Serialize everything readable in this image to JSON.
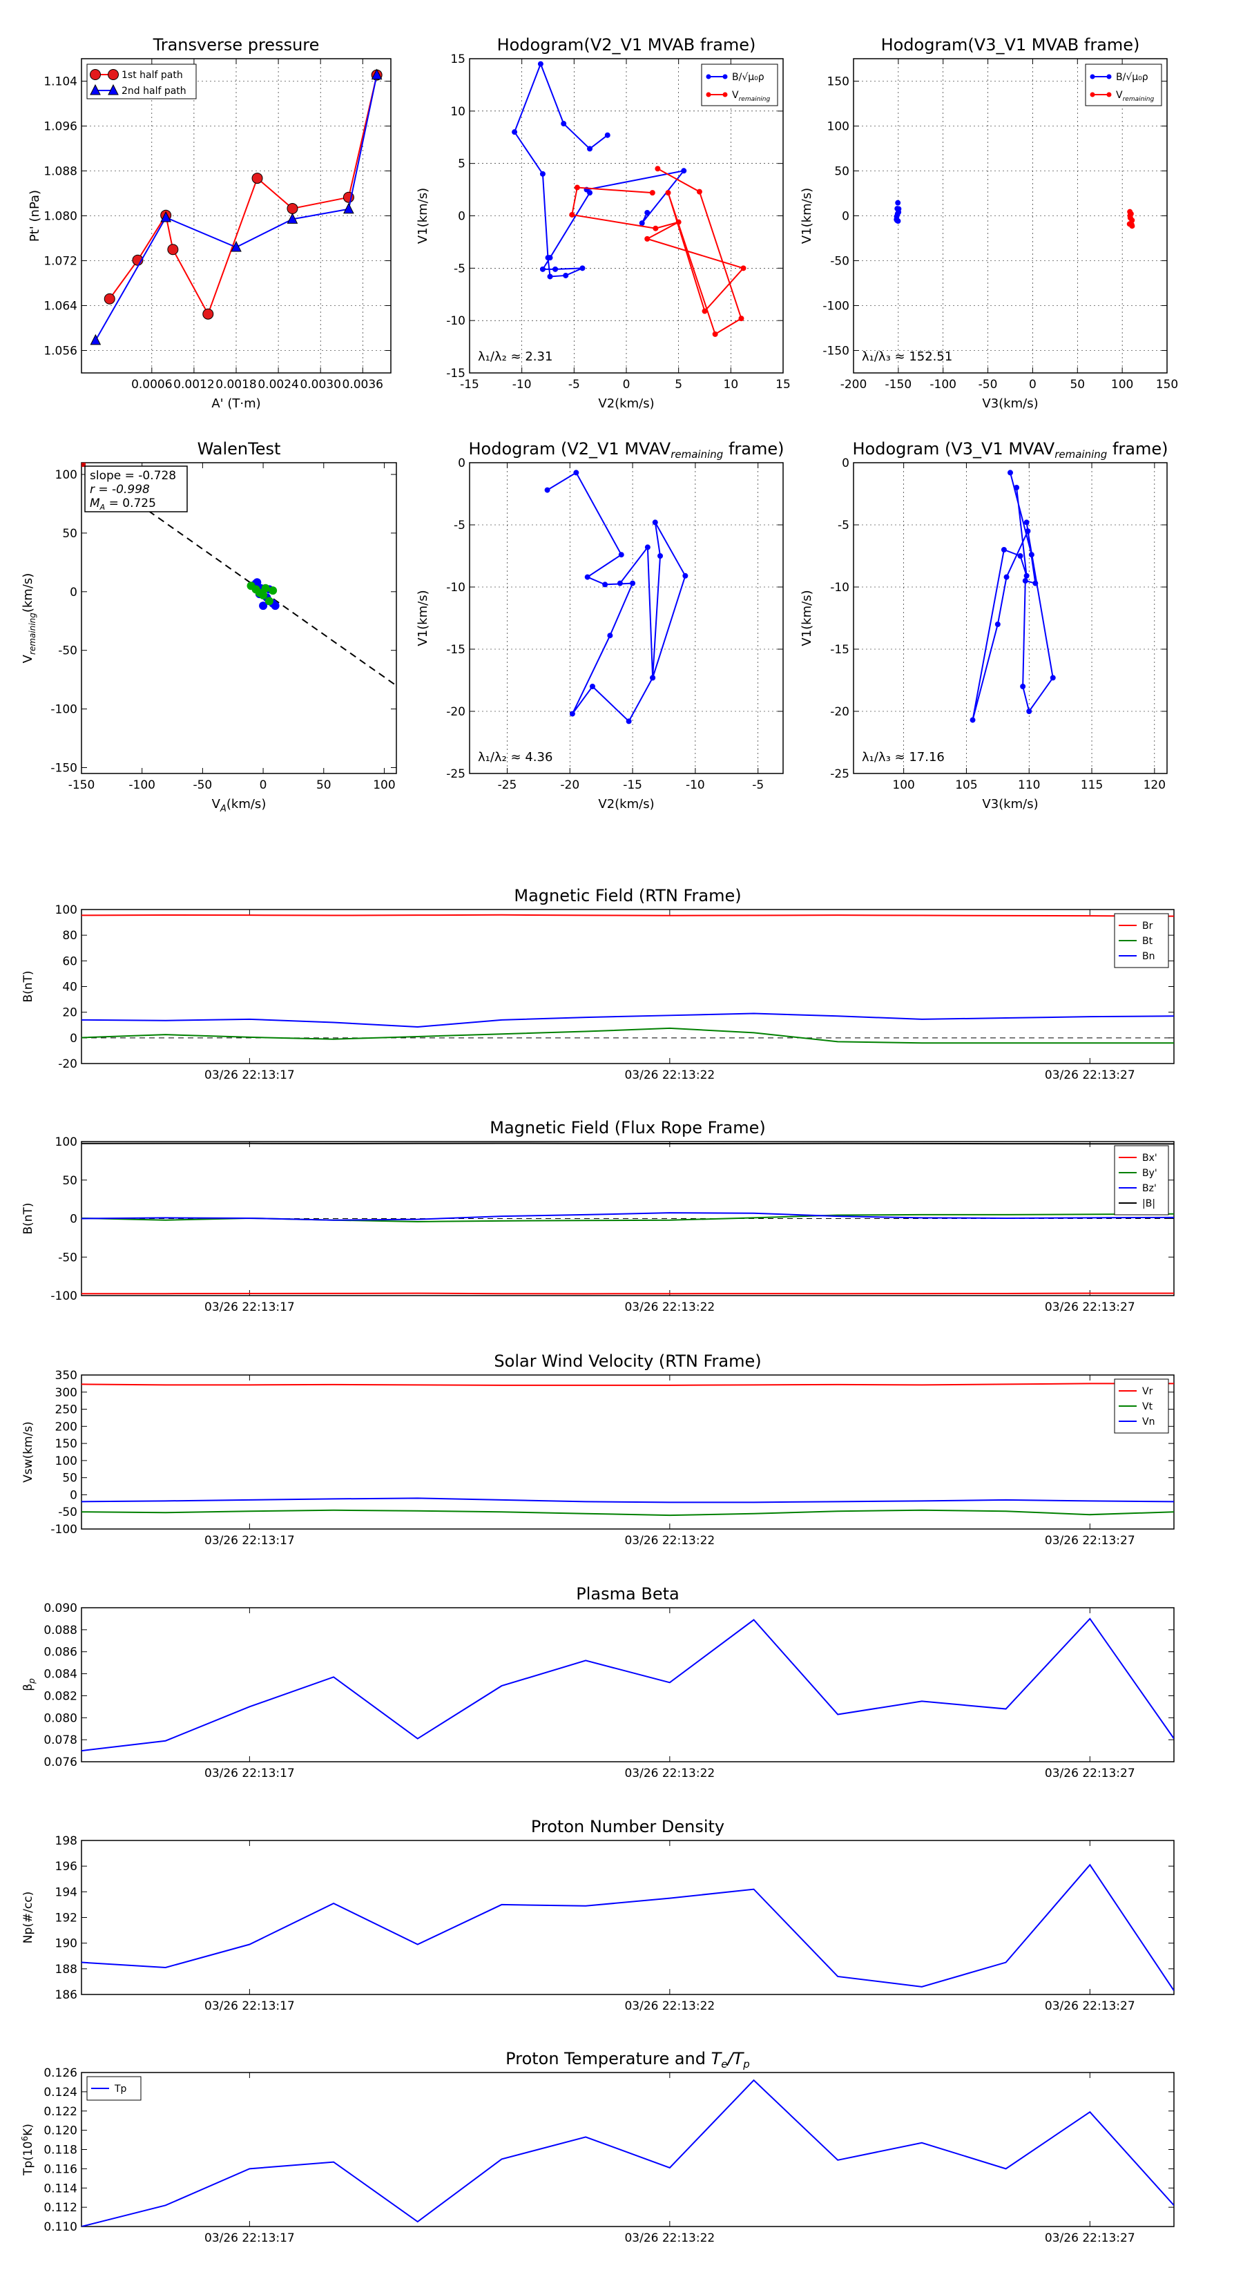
{
  "figure": {
    "walen_box": {
      "slope": "slope = -0.728",
      "r": "r = -0.998",
      "ma": "M",
      "ma_sub": "A",
      "ma_val": " = 0.725"
    }
  },
  "chart_data": [
    {
      "id": "pt",
      "type": "line",
      "title": "Transverse pressure",
      "xlabel": "A' (T·m)",
      "ylabel": "Pt' (nPa)",
      "xlim": [
        -0.0004,
        0.004
      ],
      "ylim": [
        1.052,
        1.108
      ],
      "xticks": [
        0.0006,
        0.0012,
        0.0018,
        0.0024,
        0.003,
        0.0036
      ],
      "xtick_labels": [
        "0.0006",
        "0.0012",
        "0.0018",
        "0.0024",
        "0.0030",
        "0.0036"
      ],
      "yticks": [
        1.056,
        1.064,
        1.072,
        1.08,
        1.088,
        1.096,
        1.104
      ],
      "ytick_labels": [
        "1.056",
        "1.064",
        "1.072",
        "1.080",
        "1.088",
        "1.096",
        "1.104"
      ],
      "grid": true,
      "legend": "top-left",
      "series": [
        {
          "name": "1st half path",
          "color": "#ff0000",
          "marker": "circle",
          "x": [
            0.0038,
            0.0034,
            0.0026,
            0.0021,
            0.0014,
            0.0009,
            0.0008,
            0.0004,
            0.0
          ],
          "y": [
            1.1051,
            1.0833,
            1.0813,
            1.0867,
            1.0625,
            1.074,
            1.0801,
            1.0721,
            1.0652
          ]
        },
        {
          "name": "2nd half path",
          "color": "#0000ff",
          "marker": "triangle",
          "x": [
            -0.0002,
            0.0008,
            0.0018,
            0.0026,
            0.0034,
            0.0038
          ],
          "y": [
            1.0578,
            1.0797,
            1.0744,
            1.0794,
            1.0812,
            1.1051
          ]
        }
      ]
    },
    {
      "id": "h1",
      "type": "line",
      "title": "Hodogram(V2_V1 MVAB frame)",
      "xlabel": "V2(km/s)",
      "ylabel": "V1(km/s)",
      "xlim": [
        -15,
        15
      ],
      "ylim": [
        -15,
        15
      ],
      "xticks": [
        -15,
        -10,
        -5,
        0,
        5,
        10,
        15
      ],
      "yticks": [
        -15,
        -10,
        -5,
        0,
        5,
        10,
        15
      ],
      "grid": true,
      "legend": "top-right",
      "legend_labels": [
        "B/√μ₀ρ",
        "V"
      ],
      "legend_subs": [
        "",
        "remaining"
      ],
      "annotation_main": "λ₁/λ₂ ≈ 2.31",
      "series": [
        {
          "name": "B",
          "color": "#0000ff",
          "x": [
            -1.8,
            -3.5,
            -6,
            -8.2,
            -10.7,
            -8.0,
            -7.5,
            -7.3,
            -5.8,
            -4.2,
            -6.8,
            -8.0,
            -7.3,
            -3.5,
            -3.8,
            5.5,
            1.5,
            2.0
          ],
          "y": [
            7.7,
            6.4,
            8.8,
            14.5,
            8.0,
            4.0,
            -4.0,
            -5.8,
            -5.7,
            -5.0,
            -5.1,
            -5.1,
            -4.0,
            2.2,
            2.5,
            4.3,
            -0.7,
            0.3
          ]
        },
        {
          "name": "V",
          "color": "#ff0000",
          "x": [
            3,
            7,
            11,
            8.5,
            4,
            7.5,
            11.2,
            2.0,
            5,
            2.8,
            -5.2,
            -4.7,
            2.5
          ],
          "y": [
            4.5,
            2.3,
            -9.8,
            -11.3,
            2.2,
            -9.1,
            -5.0,
            -2.2,
            -0.6,
            -1.2,
            0.1,
            2.7,
            2.2
          ]
        }
      ]
    },
    {
      "id": "h2",
      "type": "scatter",
      "title": "Hodogram(V3_V1 MVAB frame)",
      "xlabel": "V3(km/s)",
      "ylabel": "V1(km/s)",
      "xlim": [
        -200,
        150
      ],
      "ylim": [
        -175,
        175
      ],
      "xticks": [
        -200,
        -150,
        -100,
        -50,
        0,
        50,
        100,
        150
      ],
      "yticks": [
        -150,
        -100,
        -50,
        0,
        50,
        100,
        150
      ],
      "grid": true,
      "legend": "top-right",
      "legend_labels": [
        "B/√μ₀ρ",
        "V"
      ],
      "legend_subs": [
        "",
        "remaining"
      ],
      "annotation_main": "λ₁/λ₃ ≈ 152.51",
      "series": [
        {
          "name": "B",
          "color": "#0000ff",
          "x": [
            -150.5,
            -151.2,
            -149.8,
            -152.0,
            -150.3,
            -151.5,
            -149.6,
            -150.8,
            -151.8
          ],
          "y": [
            14.5,
            8.0,
            4.0,
            -4.0,
            -5.8,
            -5.0,
            7.7,
            2.2,
            -0.7
          ]
        },
        {
          "name": "V",
          "color": "#ff0000",
          "x": [
            108.5,
            109.3,
            110.5,
            111.0,
            109.8,
            108.2,
            110.9,
            109.0,
            108.8
          ],
          "y": [
            4.5,
            2.3,
            -9.8,
            -11.3,
            2.2,
            -9.1,
            -5.0,
            -2.2,
            0.1
          ]
        }
      ]
    },
    {
      "id": "walen",
      "type": "scatter",
      "title": "WalenTest",
      "xlabel": "V",
      "xlabel_sub": "A",
      "xlabel_unit": "(km/s)",
      "ylabel": "V",
      "ylabel_sub": "remaining",
      "ylabel_unit": "(km/s)",
      "xlim": [
        -150,
        110
      ],
      "ylim": [
        -155,
        110
      ],
      "xticks": [
        -150,
        -100,
        -50,
        0,
        50,
        100
      ],
      "yticks": [
        -150,
        -100,
        -50,
        0,
        50,
        100
      ],
      "grid": false,
      "fit_slope": -0.728,
      "series": [
        {
          "name": "components-1",
          "color": "#0000ff",
          "x": [
            -5,
            -2,
            3,
            8,
            -8,
            0,
            5,
            -3,
            10,
            -6
          ],
          "y": [
            8,
            3,
            -5,
            -10,
            5,
            -12,
            2,
            -2,
            -12,
            7
          ]
        },
        {
          "name": "components-2",
          "color": "#00aa00",
          "x": [
            -10,
            -6,
            0,
            5,
            8,
            2,
            -3
          ],
          "y": [
            5,
            2,
            -3,
            -8,
            1,
            3,
            -1
          ]
        }
      ]
    },
    {
      "id": "h3",
      "type": "line",
      "title": "Hodogram (V2_V1 MVAV",
      "title_sub": "remaining",
      "title_end": " frame)",
      "xlabel": "V2(km/s)",
      "ylabel": "V1(km/s)",
      "xlim": [
        -28,
        -3
      ],
      "ylim": [
        -25,
        0
      ],
      "xticks": [
        -25,
        -20,
        -15,
        -10,
        -5
      ],
      "yticks": [
        -25,
        -20,
        -15,
        -10,
        -5,
        0
      ],
      "grid": true,
      "annotation_main": "λ₁/λ₂ ≈ 4.36",
      "series": [
        {
          "name": "V",
          "color": "#0000ff",
          "x": [
            -21.8,
            -19.5,
            -15.9,
            -18.6,
            -17.2,
            -15.0,
            -16.8,
            -19.8,
            -18.2,
            -15.3,
            -13.4,
            -12.8,
            -13.2,
            -10.8,
            -13.4,
            -13.8,
            -16
          ],
          "y": [
            -2.2,
            -0.8,
            -7.4,
            -9.2,
            -9.8,
            -9.7,
            -13.9,
            -20.2,
            -18.0,
            -20.8,
            -17.3,
            -7.5,
            -4.8,
            -9.1,
            -17.3,
            -6.8,
            -9.7
          ]
        }
      ]
    },
    {
      "id": "h4",
      "type": "line",
      "title": "Hodogram (V3_V1 MVAV",
      "title_sub": "remaining",
      "title_end": " frame)",
      "xlabel": "V3(km/s)",
      "ylabel": "V1(km/s)",
      "xlim": [
        96,
        121
      ],
      "ylim": [
        -25,
        0
      ],
      "xticks": [
        100,
        105,
        110,
        115,
        120
      ],
      "yticks": [
        -25,
        -20,
        -15,
        -10,
        -5,
        0
      ],
      "grid": true,
      "annotation_main": "λ₁/λ₃ ≈ 17.16",
      "series": [
        {
          "name": "V",
          "color": "#0000ff",
          "x": [
            108.5,
            110.2,
            109.8,
            110.5,
            109.7,
            109.5,
            110.0,
            111.9,
            109.9,
            108.2,
            107.5,
            105.5,
            108.0,
            109.3,
            109.8,
            109.0
          ],
          "y": [
            -0.8,
            -7.4,
            -4.8,
            -9.7,
            -9.5,
            -18.0,
            -20.0,
            -17.3,
            -5.5,
            -9.2,
            -13.0,
            -20.7,
            -7.0,
            -7.5,
            -9.1,
            -2.0
          ]
        }
      ]
    },
    {
      "id": "bfield",
      "type": "line",
      "title": "Magnetic Field (RTN Frame)",
      "ylabel": "B(nT)",
      "xlim": [
        0,
        13
      ],
      "ylim": [
        -20,
        100
      ],
      "yticks": [
        -20,
        0,
        20,
        40,
        60,
        80,
        100
      ],
      "xtick_pos": [
        2,
        7,
        12
      ],
      "xtick_labels": [
        "03/26 22:13:17",
        "03/26 22:13:22",
        "03/26 22:13:27"
      ],
      "zero_line": true,
      "legend": "top-right",
      "series": [
        {
          "name": "Br",
          "color": "#ff0000",
          "values": [
            95.5,
            95.7,
            95.6,
            95.4,
            95.6,
            95.8,
            95.5,
            95.3,
            95.4,
            95.6,
            95.4,
            95.2,
            95.1,
            94.8
          ]
        },
        {
          "name": "Bt",
          "color": "#008000",
          "values": [
            0.2,
            2.5,
            0.5,
            -1.0,
            1.0,
            3.0,
            5.0,
            7.5,
            4.0,
            -3.0,
            -4.0,
            -4.0,
            -4.0,
            -4.0
          ]
        },
        {
          "name": "Bn",
          "color": "#0000ff",
          "values": [
            14.0,
            13.5,
            14.5,
            12.0,
            8.5,
            14.0,
            16.0,
            17.5,
            19.0,
            17.0,
            14.5,
            15.5,
            16.5,
            17.0
          ]
        }
      ]
    },
    {
      "id": "bflux",
      "type": "line",
      "title": "Magnetic Field (Flux Rope Frame)",
      "ylabel": "B(nT)",
      "xlim": [
        0,
        13
      ],
      "ylim": [
        -100,
        100
      ],
      "yticks": [
        -100,
        -50,
        0,
        50,
        100
      ],
      "xtick_pos": [
        2,
        7,
        12
      ],
      "xtick_labels": [
        "03/26 22:13:17",
        "03/26 22:13:22",
        "03/26 22:13:27"
      ],
      "zero_line": true,
      "legend": "top-right",
      "series": [
        {
          "name": "Bx'",
          "color": "#ff0000",
          "values": [
            -97.5,
            -97.5,
            -97.3,
            -97.2,
            -97.0,
            -97.5,
            -97.6,
            -97.5,
            -97.4,
            -97.5,
            -97.4,
            -97.3,
            -97.0,
            -97.0
          ]
        },
        {
          "name": "By'",
          "color": "#008000",
          "values": [
            0.5,
            -2.0,
            0.5,
            -2.0,
            -4.0,
            -3.0,
            -2.5,
            -2.0,
            1.0,
            4.5,
            5.0,
            5.0,
            5.5,
            6.0
          ]
        },
        {
          "name": "Bz'",
          "color": "#0000ff",
          "values": [
            0,
            1.0,
            0.5,
            -2.0,
            -1.0,
            3.0,
            5.0,
            7.5,
            7.0,
            3.0,
            1.0,
            0.5,
            1.0,
            1.5
          ]
        },
        {
          "name": "|B|",
          "color": "#000000",
          "values": [
            97.5,
            97.7,
            97.6,
            97.4,
            97.6,
            97.8,
            97.5,
            97.3,
            97.4,
            97.6,
            97.4,
            97.2,
            97.1,
            97.0
          ]
        }
      ]
    },
    {
      "id": "vsw",
      "type": "line",
      "title": "Solar Wind Velocity (RTN Frame)",
      "ylabel": "Vsw(km/s)",
      "xlim": [
        0,
        13
      ],
      "ylim": [
        -100,
        350
      ],
      "yticks": [
        -100,
        -50,
        0,
        50,
        100,
        150,
        200,
        250,
        300,
        350
      ],
      "xtick_pos": [
        2,
        7,
        12
      ],
      "xtick_labels": [
        "03/26 22:13:17",
        "03/26 22:13:22",
        "03/26 22:13:27"
      ],
      "legend": "top-right",
      "series": [
        {
          "name": "Vr",
          "color": "#ff0000",
          "values": [
            323,
            321,
            321,
            322,
            321,
            320,
            320,
            320,
            321,
            322,
            321,
            323,
            325,
            325
          ]
        },
        {
          "name": "Vt",
          "color": "#008000",
          "values": [
            -50,
            -52,
            -48,
            -45,
            -47,
            -50,
            -55,
            -60,
            -55,
            -48,
            -45,
            -48,
            -58,
            -50
          ]
        },
        {
          "name": "Vn",
          "color": "#0000ff",
          "values": [
            -20,
            -18,
            -15,
            -12,
            -10,
            -15,
            -20,
            -22,
            -22,
            -20,
            -18,
            -15,
            -18,
            -20
          ]
        }
      ]
    },
    {
      "id": "beta",
      "type": "line",
      "title": "Plasma Beta",
      "ylabel": "β",
      "ylabel_sub": "p",
      "xlim": [
        0,
        13
      ],
      "ylim": [
        0.076,
        0.09
      ],
      "yticks": [
        0.076,
        0.078,
        0.08,
        0.082,
        0.084,
        0.086,
        0.088,
        0.09
      ],
      "ytick_labels": [
        "0.076",
        "0.078",
        "0.080",
        "0.082",
        "0.084",
        "0.086",
        "0.088",
        "0.090"
      ],
      "xtick_pos": [
        2,
        7,
        12
      ],
      "xtick_labels": [
        "03/26 22:13:17",
        "03/26 22:13:22",
        "03/26 22:13:27"
      ],
      "series": [
        {
          "name": "beta",
          "color": "#0000ff",
          "values": [
            0.077,
            0.0779,
            0.081,
            0.0837,
            0.0781,
            0.0829,
            0.0852,
            0.0832,
            0.0889,
            0.0803,
            0.0815,
            0.0808,
            0.089,
            0.0781
          ]
        }
      ]
    },
    {
      "id": "np",
      "type": "line",
      "title": "Proton Number Density",
      "ylabel": "Np(#/cc)",
      "xlim": [
        0,
        13
      ],
      "ylim": [
        186,
        198
      ],
      "yticks": [
        186,
        188,
        190,
        192,
        194,
        196,
        198
      ],
      "xtick_pos": [
        2,
        7,
        12
      ],
      "xtick_labels": [
        "03/26 22:13:17",
        "03/26 22:13:22",
        "03/26 22:13:27"
      ],
      "series": [
        {
          "name": "Np",
          "color": "#0000ff",
          "values": [
            188.5,
            188.1,
            189.9,
            193.1,
            189.9,
            193.0,
            192.9,
            193.5,
            194.2,
            187.4,
            186.6,
            188.5,
            196.1,
            186.3
          ]
        }
      ]
    },
    {
      "id": "tp",
      "type": "line",
      "title": "Proton Temperature and ",
      "title_math": "T",
      "title_sub": "e",
      "title_end": "/T",
      "title_end_sub": "p",
      "ylabel": "Tp(10",
      "ylabel_sup": "6",
      "ylabel_end": "K)",
      "xlim": [
        0,
        13
      ],
      "ylim": [
        0.11,
        0.126
      ],
      "yticks": [
        0.11,
        0.112,
        0.114,
        0.116,
        0.118,
        0.12,
        0.122,
        0.124,
        0.126
      ],
      "ytick_labels": [
        "0.110",
        "0.112",
        "0.114",
        "0.116",
        "0.118",
        "0.120",
        "0.122",
        "0.124",
        "0.126"
      ],
      "xtick_pos": [
        2,
        7,
        12
      ],
      "xtick_labels": [
        "03/26 22:13:17",
        "03/26 22:13:22",
        "03/26 22:13:27"
      ],
      "legend": "top-left",
      "series": [
        {
          "name": "Tp",
          "color": "#0000ff",
          "values": [
            0.11,
            0.1122,
            0.116,
            0.1167,
            0.1105,
            0.117,
            0.1193,
            0.1161,
            0.1252,
            0.1169,
            0.1187,
            0.116,
            0.1219,
            0.1122
          ]
        }
      ]
    }
  ]
}
